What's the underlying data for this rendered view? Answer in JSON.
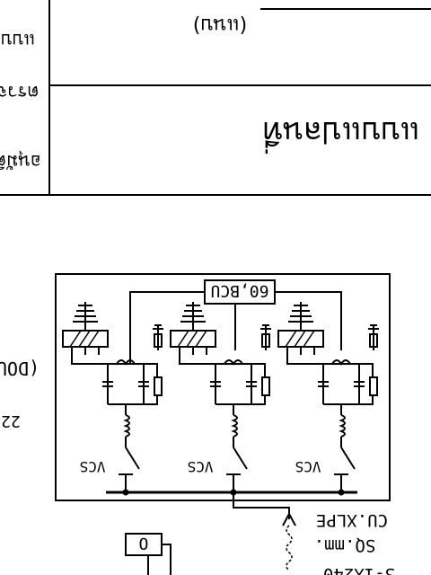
{
  "title_block": {
    "left_labels": [
      "แบบ",
      "ตรวจ",
      "อนุมัติ"
    ],
    "note_paren": "(แนบ)",
    "drawing_name": "แบบแปลนที่"
  },
  "schematic": {
    "panel_label": "60,BCU",
    "switch_labels": [
      "VCS",
      "VCS",
      "VCS"
    ],
    "left_partial_text": "(DOU",
    "left_partial_num": "22",
    "cable_type": "CU.XLPE",
    "cable_size": "SQ.mm.",
    "cable_count": "3-1X240",
    "bottom_symbol": "O"
  }
}
